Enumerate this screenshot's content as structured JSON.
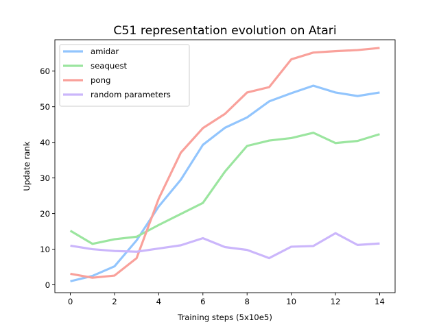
{
  "chart_data": {
    "type": "line",
    "title": "C51 representation evolution on Atari",
    "xlabel": "Training steps (5x10e5)",
    "ylabel": "Update rank",
    "xlim": [
      -0.7,
      14.7
    ],
    "ylim": [
      -2.2,
      68.8
    ],
    "xticks": [
      0,
      2,
      4,
      6,
      8,
      10,
      12,
      14
    ],
    "yticks": [
      0,
      10,
      20,
      30,
      40,
      50,
      60
    ],
    "grid": false,
    "legend_position": "upper-left",
    "x": [
      0,
      1,
      2,
      3,
      4,
      5,
      6,
      7,
      8,
      9,
      10,
      11,
      12,
      13,
      14
    ],
    "series": [
      {
        "name": "amidar",
        "color": "#92c5fd",
        "values": [
          1,
          2.5,
          5.2,
          12.5,
          22,
          29.5,
          39.3,
          44.1,
          47,
          51.5,
          53.8,
          55.9,
          54,
          53,
          54
        ]
      },
      {
        "name": "seaquest",
        "color": "#9be59f",
        "values": [
          15.2,
          11.5,
          12.8,
          13.5,
          16.8,
          19.9,
          23,
          31.8,
          39,
          40.5,
          41.2,
          42.7,
          39.8,
          40.4,
          42.3
        ]
      },
      {
        "name": "pong",
        "color": "#f9a19b",
        "values": [
          3.1,
          2,
          2.6,
          7.5,
          24.2,
          37.1,
          44,
          48,
          54,
          55.5,
          63.3,
          65.2,
          65.6,
          65.9,
          66.5
        ]
      },
      {
        "name": "random parameters",
        "color": "#cbb6fb",
        "values": [
          11,
          10,
          9.5,
          9.3,
          10.2,
          11.1,
          13.1,
          10.6,
          9.8,
          7.5,
          10.7,
          10.9,
          14.5,
          11.2,
          11.6
        ]
      }
    ]
  }
}
